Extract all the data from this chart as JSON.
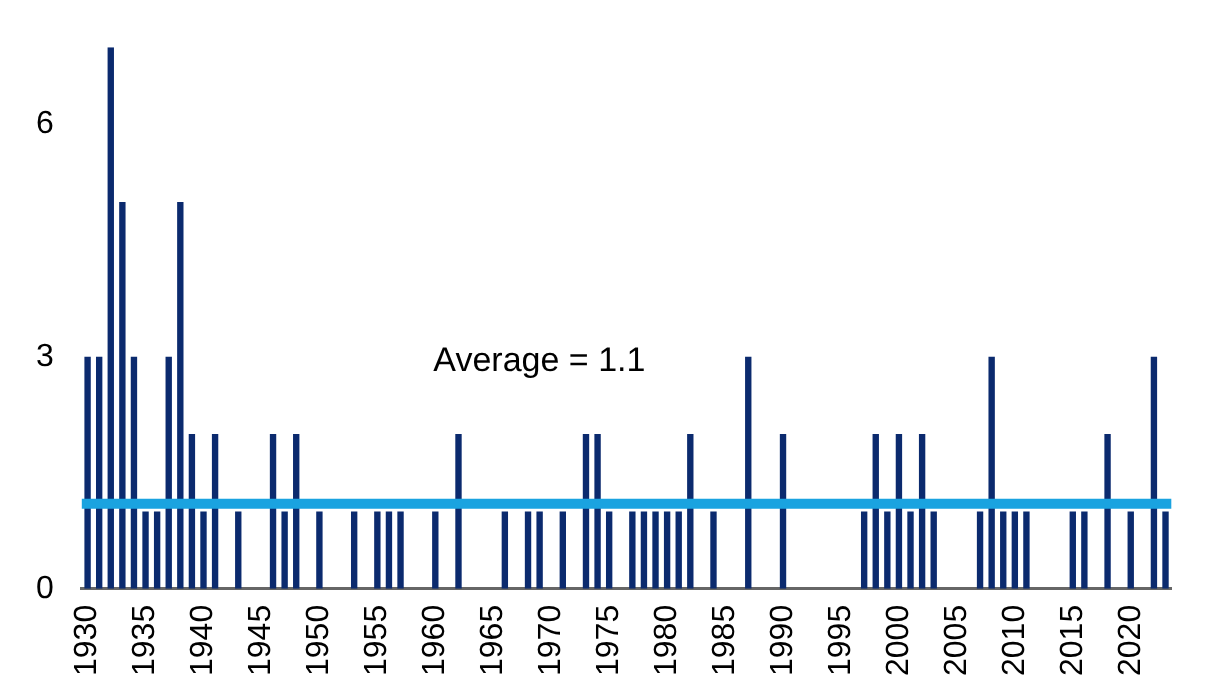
{
  "chart_data": {
    "type": "bar",
    "categories": [
      "1930",
      null,
      null,
      null,
      null,
      "1935",
      null,
      null,
      null,
      null,
      "1940",
      null,
      null,
      null,
      null,
      "1945",
      null,
      null,
      null,
      null,
      "1950",
      null,
      null,
      null,
      null,
      "1955",
      null,
      null,
      null,
      null,
      "1960",
      null,
      null,
      null,
      null,
      "1965",
      null,
      null,
      null,
      null,
      "1970",
      null,
      null,
      null,
      null,
      "1975",
      null,
      null,
      null,
      null,
      "1980",
      null,
      null,
      null,
      null,
      "1985",
      null,
      null,
      null,
      null,
      "1990",
      null,
      null,
      null,
      null,
      "1995",
      null,
      null,
      null,
      null,
      "2000",
      null,
      null,
      null,
      null,
      "2005",
      null,
      null,
      null,
      null,
      "2010",
      null,
      null,
      null,
      null,
      "2015",
      null,
      null,
      null,
      null,
      "2020",
      null,
      null,
      null
    ],
    "values": [
      3,
      3,
      7,
      5,
      3,
      1,
      1,
      3,
      5,
      2,
      1,
      2,
      0,
      1,
      0,
      0,
      2,
      1,
      2,
      0,
      1,
      0,
      0,
      1,
      0,
      1,
      1,
      1,
      0,
      0,
      1,
      0,
      2,
      0,
      0,
      0,
      1,
      0,
      1,
      1,
      0,
      1,
      0,
      2,
      2,
      1,
      0,
      1,
      1,
      1,
      1,
      1,
      2,
      0,
      1,
      0,
      0,
      3,
      0,
      0,
      2,
      0,
      0,
      0,
      0,
      0,
      0,
      1,
      2,
      1,
      2,
      1,
      2,
      1,
      0,
      0,
      0,
      1,
      3,
      1,
      1,
      1,
      0,
      0,
      0,
      1,
      1,
      0,
      2,
      0,
      1,
      0,
      3,
      1
    ],
    "color": "#0b2a6e",
    "ylim": [
      0,
      7
    ],
    "yticks": [
      0,
      3,
      6
    ],
    "ref_lines": [
      {
        "axis": "y",
        "value": 1.1,
        "color": "#1aa3e0"
      }
    ],
    "annotations": [
      "Average = 1.1"
    ],
    "grid": false,
    "legend": false
  }
}
